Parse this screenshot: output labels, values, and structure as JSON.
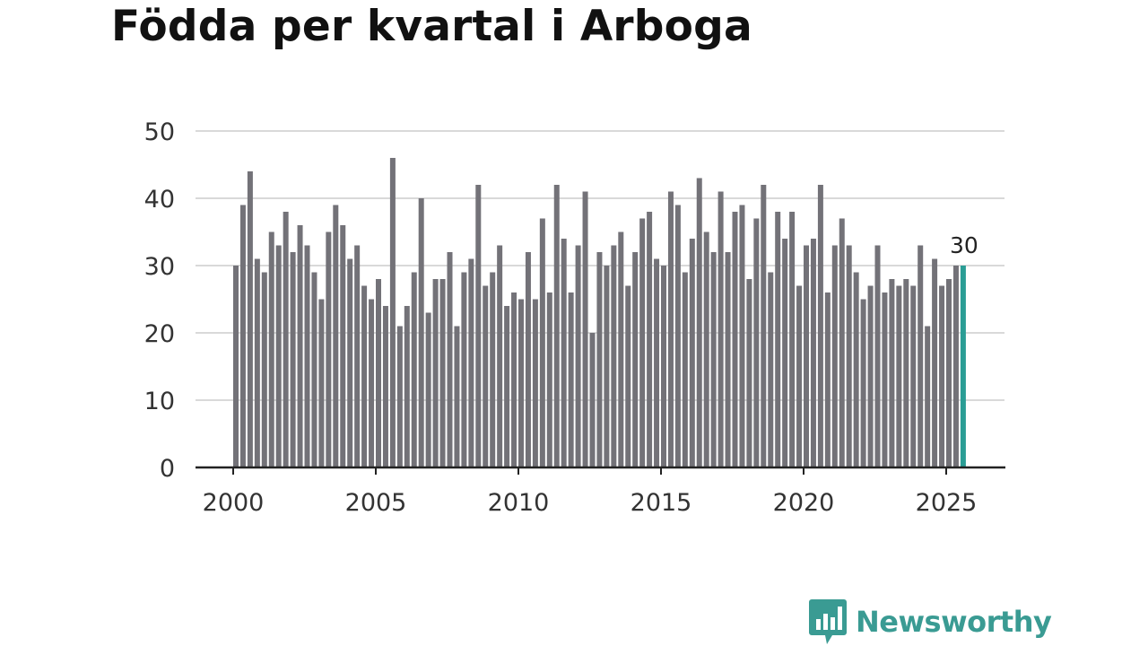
{
  "chart_data": {
    "type": "bar",
    "title": "Födda per kvartal i Arboga",
    "xlabel": "",
    "ylabel": "",
    "ylim": [
      0,
      50
    ],
    "yticks": [
      0,
      10,
      20,
      30,
      40,
      50
    ],
    "xticks": [
      "2000",
      "2005",
      "2010",
      "2015",
      "2020",
      "2025"
    ],
    "grid": true,
    "start_year": 2000,
    "periods_per_year": 4,
    "values": [
      30,
      39,
      44,
      31,
      29,
      35,
      33,
      38,
      32,
      36,
      33,
      29,
      25,
      35,
      39,
      36,
      31,
      33,
      27,
      25,
      28,
      24,
      46,
      21,
      24,
      29,
      40,
      23,
      28,
      28,
      32,
      21,
      29,
      31,
      42,
      27,
      29,
      33,
      24,
      26,
      25,
      32,
      25,
      37,
      26,
      42,
      34,
      26,
      33,
      41,
      20,
      32,
      30,
      33,
      35,
      27,
      32,
      37,
      38,
      31,
      30,
      41,
      39,
      29,
      34,
      43,
      35,
      32,
      41,
      32,
      38,
      39,
      28,
      37,
      42,
      29,
      38,
      34,
      38,
      27,
      33,
      34,
      42,
      26,
      33,
      37,
      33,
      29,
      25,
      27,
      33,
      26,
      28,
      27,
      28,
      27,
      33,
      21,
      31,
      27,
      28,
      30,
      30
    ],
    "highlight_label": "30",
    "bar_color": "#737278",
    "highlight_color": "#2a9d95"
  },
  "brand": {
    "name": "Newsworthy",
    "icon": "newsworthy-logo-icon",
    "color": "#3a9b93"
  }
}
